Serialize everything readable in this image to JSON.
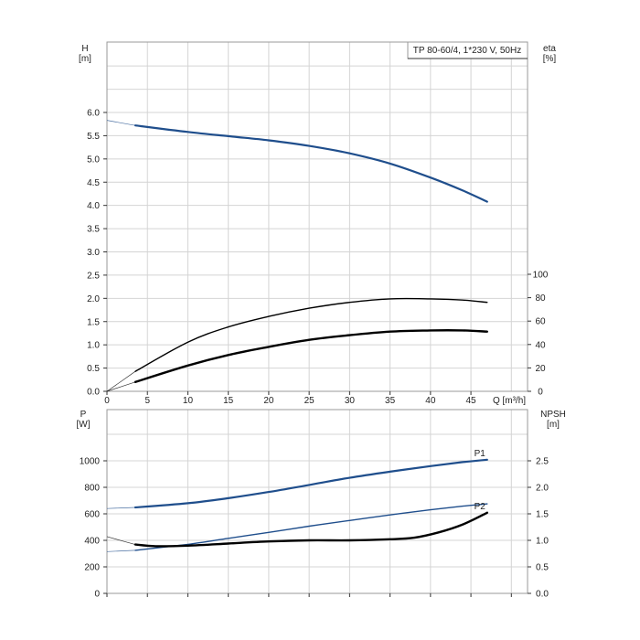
{
  "chart_data": [
    {
      "type": "line",
      "title": "TP 80-60/4, 1*230 V, 50Hz",
      "xlabel": "Q [m³/h]",
      "x_ticks": [
        0,
        5,
        10,
        15,
        20,
        25,
        30,
        35,
        40,
        45
      ],
      "xlim": [
        0,
        52
      ],
      "left_axis": {
        "label_top": "H",
        "label_unit": "[m]",
        "ylim": [
          0,
          6.0
        ],
        "ticks": [
          "0.0",
          "0.5",
          "1.0",
          "1.5",
          "2.0",
          "2.5",
          "3.0",
          "3.5",
          "4.0",
          "4.5",
          "5.0",
          "5.5",
          "6.0"
        ]
      },
      "right_axis": {
        "label_top": "eta",
        "label_unit": "[%]",
        "ylim": [
          0,
          100
        ],
        "ticks": [
          "0",
          "20",
          "40",
          "60",
          "80",
          "100"
        ]
      },
      "grid": true,
      "series": [
        {
          "axis": "left",
          "color": "#1f4e8c",
          "x": [
            3.5,
            10,
            15,
            20,
            25,
            30,
            35,
            40,
            44,
            47
          ],
          "y": [
            5.72,
            5.58,
            5.49,
            5.4,
            5.28,
            5.12,
            4.9,
            4.6,
            4.32,
            4.08
          ],
          "extension_x": [
            0,
            3.5
          ],
          "extension_y": [
            5.83,
            5.72
          ]
        },
        {
          "axis": "right",
          "color": "#000000",
          "x": [
            3.5,
            10,
            15,
            20,
            25,
            30,
            35,
            40,
            44,
            47
          ],
          "y": [
            17,
            42,
            55,
            64,
            71,
            76,
            79,
            79,
            78,
            76
          ],
          "extension_x": [
            0,
            3.5
          ],
          "extension_y": [
            0,
            17
          ]
        },
        {
          "axis": "right",
          "color": "#000000",
          "x": [
            3.5,
            10,
            15,
            20,
            25,
            30,
            35,
            40,
            44,
            47
          ],
          "y": [
            8,
            22,
            31,
            38,
            44,
            48,
            51,
            52,
            52,
            51
          ],
          "extension_x": [
            0,
            3.5
          ],
          "extension_y": [
            0,
            8
          ]
        }
      ]
    },
    {
      "type": "line",
      "xlim": [
        0,
        52
      ],
      "left_axis": {
        "label_top": "P",
        "label_unit": "[W]",
        "ylim": [
          0,
          1200
        ],
        "ticks": [
          "0",
          "200",
          "400",
          "600",
          "800",
          "1000"
        ]
      },
      "right_axis": {
        "label_top": "NPSH",
        "label_unit": "[m]",
        "ylim": [
          0,
          3.0
        ],
        "ticks": [
          "0.0",
          "0.5",
          "1.0",
          "1.5",
          "2.0",
          "2.5"
        ]
      },
      "grid": true,
      "series": [
        {
          "name": "P1",
          "axis": "left",
          "color": "#1f4e8c",
          "x": [
            3.5,
            10,
            15,
            20,
            25,
            30,
            35,
            40,
            44,
            47
          ],
          "y": [
            648,
            680,
            718,
            765,
            818,
            872,
            918,
            960,
            990,
            1008
          ],
          "extension_x": [
            0,
            3.5
          ],
          "extension_y": [
            640,
            648
          ]
        },
        {
          "name": "P2",
          "axis": "left",
          "color": "#1f4e8c",
          "x": [
            3.5,
            10,
            15,
            20,
            25,
            30,
            35,
            40,
            44,
            47
          ],
          "y": [
            325,
            370,
            415,
            460,
            507,
            550,
            592,
            630,
            658,
            675
          ],
          "extension_x": [
            0,
            3.5
          ],
          "extension_y": [
            315,
            325
          ]
        },
        {
          "axis": "right",
          "color": "#000000",
          "x": [
            3.5,
            6,
            10,
            15,
            20,
            25,
            30,
            35,
            38,
            41,
            44,
            47
          ],
          "y": [
            0.92,
            0.89,
            0.9,
            0.94,
            0.98,
            1.0,
            1.0,
            1.02,
            1.05,
            1.15,
            1.3,
            1.52
          ],
          "extension_x": [
            0,
            3.5
          ],
          "extension_y": [
            1.07,
            0.92
          ]
        }
      ]
    }
  ]
}
